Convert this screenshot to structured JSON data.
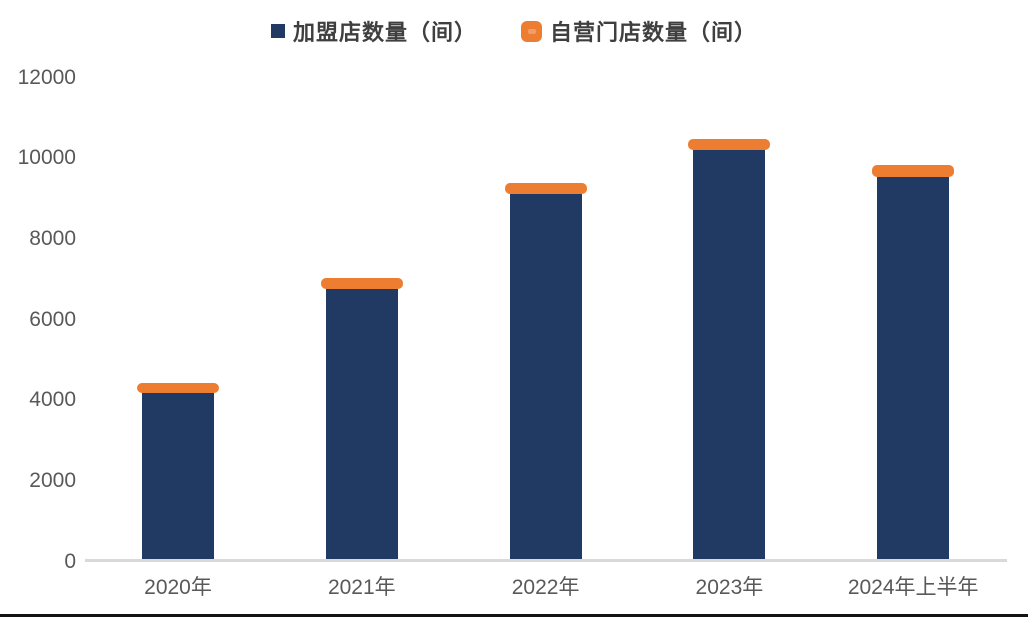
{
  "chart_data": {
    "type": "bar",
    "stacked": true,
    "title": "",
    "categories": [
      "2020年",
      "2021年",
      "2022年",
      "2023年",
      "2024年上半年"
    ],
    "series": [
      {
        "name": "加盟店数量（间）",
        "color": "#213a63",
        "marker": "square-icon",
        "values": [
          4180,
          6750,
          9100,
          10200,
          9540
        ]
      },
      {
        "name": "自营门店数量（间）",
        "color": "#ed7d31",
        "marker": "rounded-square-icon",
        "values": [
          250,
          270,
          290,
          280,
          290
        ]
      }
    ],
    "totals": [
      4430,
      7020,
      9390,
      10480,
      9830
    ],
    "y_axis": {
      "min": 0,
      "max": 12000,
      "step": 2000,
      "ticks": [
        "0",
        "2000",
        "4000",
        "6000",
        "8000",
        "10000",
        "12000"
      ]
    },
    "x_axis_label": "",
    "y_axis_label": "",
    "legend_position": "top",
    "grid": false
  },
  "colors": {
    "franchise_bar": "#213a63",
    "self_operated_bar": "#ed7d31",
    "self_operated_marker_dash": "#f29d66",
    "axis_text": "#595959",
    "legend_text": "#3f3f3f",
    "axis_line": "#d9d9d9",
    "bottom_rule": "#141414",
    "background": "#ffffff"
  }
}
